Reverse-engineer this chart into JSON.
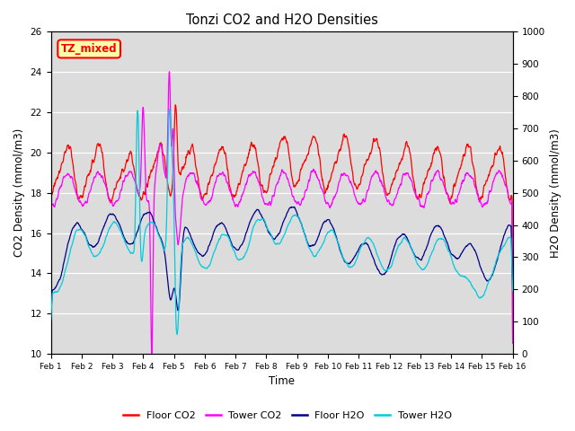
{
  "title": "Tonzi CO2 and H2O Densities",
  "xlabel": "Time",
  "ylabel_left": "CO2 Density (mmol/m3)",
  "ylabel_right": "H2O Density (mmol/m3)",
  "ylim_left": [
    10,
    26
  ],
  "ylim_right": [
    0,
    1000
  ],
  "annotation_text": "TZ_mixed",
  "colors": {
    "floor_co2": "#FF0000",
    "tower_co2": "#FF00FF",
    "floor_h2o": "#00008B",
    "tower_h2o": "#00CCDD"
  },
  "legend_labels": [
    "Floor CO2",
    "Tower CO2",
    "Floor H2O",
    "Tower H2O"
  ],
  "plot_bg": "#DCDCDC",
  "yticks_left": [
    10,
    12,
    14,
    16,
    18,
    20,
    22,
    24,
    26
  ],
  "yticks_right": [
    0,
    100,
    200,
    300,
    400,
    500,
    600,
    700,
    800,
    900,
    1000
  ],
  "xtick_days": [
    1,
    2,
    3,
    4,
    5,
    6,
    7,
    8,
    9,
    10,
    11,
    12,
    13,
    14,
    15,
    16
  ]
}
